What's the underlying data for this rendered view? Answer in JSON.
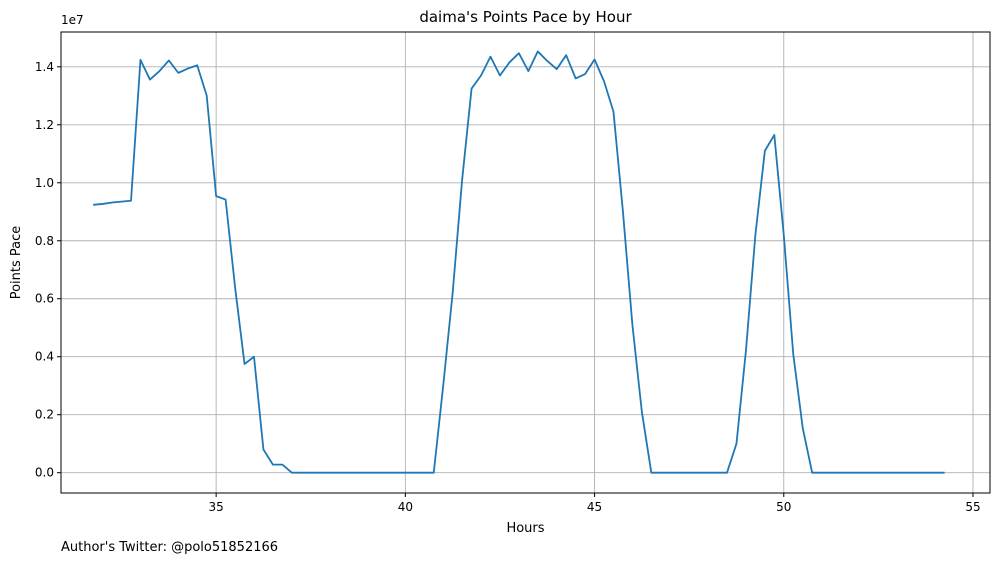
{
  "chart_data": {
    "type": "line",
    "title": "daima's Points Pace by Hour",
    "xlabel": "Hours",
    "ylabel": "Points Pace",
    "y_scale_label": "1e7",
    "xlim": [
      30.9,
      55.45
    ],
    "ylim": [
      -0.07,
      1.52
    ],
    "x_ticks": [
      35,
      40,
      45,
      50,
      55
    ],
    "y_ticks": [
      0.0,
      0.2,
      0.4,
      0.6,
      0.8,
      1.0,
      1.2,
      1.4
    ],
    "x_tick_labels": [
      "35",
      "40",
      "45",
      "50",
      "55"
    ],
    "y_tick_labels": [
      "0.0",
      "0.2",
      "0.4",
      "0.6",
      "0.8",
      "1.0",
      "1.2",
      "1.4"
    ],
    "grid": true,
    "color": "#1f77b4",
    "series": [
      {
        "x": [
          31.75,
          32.0,
          32.25,
          32.5,
          32.75,
          33.0,
          33.25,
          33.5,
          33.75,
          34.0,
          34.25,
          34.5,
          34.75,
          35.0,
          35.25,
          35.5,
          35.75,
          36.0,
          36.25,
          36.5,
          36.75,
          37.0,
          37.25,
          37.5,
          37.75,
          38.0,
          38.25,
          38.5,
          38.75,
          39.0,
          39.25,
          39.5,
          39.75,
          40.0,
          40.25,
          40.5,
          40.75,
          41.0,
          41.25,
          41.5,
          41.75,
          42.0,
          42.25,
          42.5,
          42.75,
          43.0,
          43.25,
          43.5,
          43.75,
          44.0,
          44.25,
          44.5,
          44.75,
          45.0,
          45.25,
          45.5,
          45.75,
          46.0,
          46.25,
          46.5,
          46.75,
          47.0,
          47.25,
          47.5,
          47.75,
          48.0,
          48.25,
          48.5,
          48.75,
          49.0,
          49.25,
          49.5,
          49.75,
          50.0,
          50.25,
          50.5,
          50.75,
          51.0,
          51.25,
          51.5,
          51.75,
          52.0,
          52.25,
          52.5,
          52.75,
          53.0,
          53.25,
          53.5,
          53.75,
          54.0,
          54.25
        ],
        "y": [
          0.924,
          0.927,
          0.932,
          0.935,
          0.938,
          1.424,
          1.356,
          1.385,
          1.422,
          1.379,
          1.394,
          1.405,
          1.301,
          0.954,
          0.942,
          0.64,
          0.375,
          0.4,
          0.08,
          0.028,
          0.028,
          0.0,
          0.0,
          0.0,
          0.0,
          0.0,
          0.0,
          0.0,
          0.0,
          0.0,
          0.0,
          0.0,
          0.0,
          0.0,
          0.0,
          0.0,
          0.0,
          0.3,
          0.62,
          1.01,
          1.325,
          1.37,
          1.435,
          1.37,
          1.415,
          1.447,
          1.385,
          1.453,
          1.42,
          1.392,
          1.44,
          1.36,
          1.375,
          1.425,
          1.35,
          1.245,
          0.9,
          0.51,
          0.21,
          0.0,
          0.0,
          0.0,
          0.0,
          0.0,
          0.0,
          0.0,
          0.0,
          0.0,
          0.1,
          0.42,
          0.82,
          1.11,
          1.165,
          0.82,
          0.41,
          0.155,
          0.0,
          0.0,
          0.0,
          0.0,
          0.0,
          0.0,
          0.0,
          0.0,
          0.0,
          0.0,
          0.0,
          0.0,
          0.0,
          0.0,
          0.0
        ]
      }
    ]
  },
  "footer": {
    "author_credit": "Author's Twitter: @polo51852166"
  }
}
